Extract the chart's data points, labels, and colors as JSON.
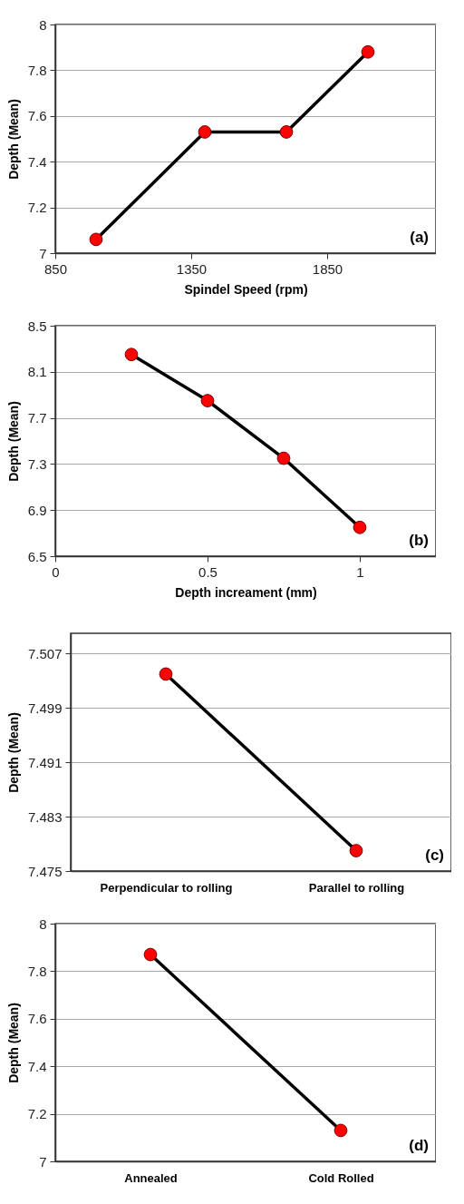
{
  "chart_data": [
    {
      "type": "line",
      "x": [
        1000,
        1400,
        1700,
        2000
      ],
      "xlabel": "Spindel Speed (rpm)",
      "ylabel": "Depth (Mean)",
      "xlim": [
        850,
        2250
      ],
      "xticks": [
        850,
        1350,
        1850
      ],
      "ylim": [
        7,
        8
      ],
      "yticks": [
        7,
        7.2,
        7.4,
        7.6,
        7.8,
        8
      ],
      "grid": "y",
      "marker": "circle",
      "line_style": "solid",
      "annotations": [
        "(a)"
      ],
      "series": [
        {
          "color": "#000000",
          "colors": [
            "#ff0000",
            "#ff0000",
            "#ff0000",
            "#ff0000"
          ],
          "values": [
            7.06,
            7.53,
            7.53,
            7.88
          ]
        }
      ]
    },
    {
      "type": "line",
      "x": [
        0.25,
        0.5,
        0.75,
        1
      ],
      "xlabel": "Depth increament (mm)",
      "ylabel": "Depth (Mean)",
      "xlim": [
        0,
        1.25
      ],
      "xticks": [
        0,
        0.5,
        1
      ],
      "ylim": [
        6.5,
        8.5
      ],
      "yticks": [
        6.5,
        6.9,
        7.3,
        7.7,
        8.1,
        8.5
      ],
      "grid": "y",
      "marker": "circle",
      "line_style": "solid",
      "annotations": [
        "(b)"
      ],
      "series": [
        {
          "color": "#000000",
          "colors": [
            "#ff0000",
            "#ff0000",
            "#ff0000",
            "#ff0000"
          ],
          "values": [
            8.25,
            7.85,
            7.35,
            6.75
          ]
        }
      ]
    },
    {
      "type": "line",
      "categories": [
        "Perpendicular to rolling",
        "Parallel to rolling"
      ],
      "ylabel": "Depth (Mean)",
      "ylim": [
        7.475,
        7.51
      ],
      "yticks": [
        7.475,
        7.483,
        7.491,
        7.499,
        7.507
      ],
      "grid": "y",
      "marker": "circle",
      "line_style": "solid",
      "annotations": [
        "(c)"
      ],
      "series": [
        {
          "color": "#000000",
          "colors": [
            "#ff0000",
            "#ff0000"
          ],
          "values": [
            7.504,
            7.478
          ]
        }
      ]
    },
    {
      "type": "line",
      "categories": [
        "Annealed",
        "Cold Rolled"
      ],
      "ylabel": "Depth (Mean)",
      "ylim": [
        7,
        8
      ],
      "yticks": [
        7,
        7.2,
        7.4,
        7.6,
        7.8,
        8
      ],
      "grid": "y",
      "marker": "circle",
      "line_style": "solid",
      "annotations": [
        "(d)"
      ],
      "series": [
        {
          "color": "#000000",
          "colors": [
            "#ff0000",
            "#ff0000"
          ],
          "values": [
            7.87,
            7.13
          ]
        }
      ]
    }
  ]
}
